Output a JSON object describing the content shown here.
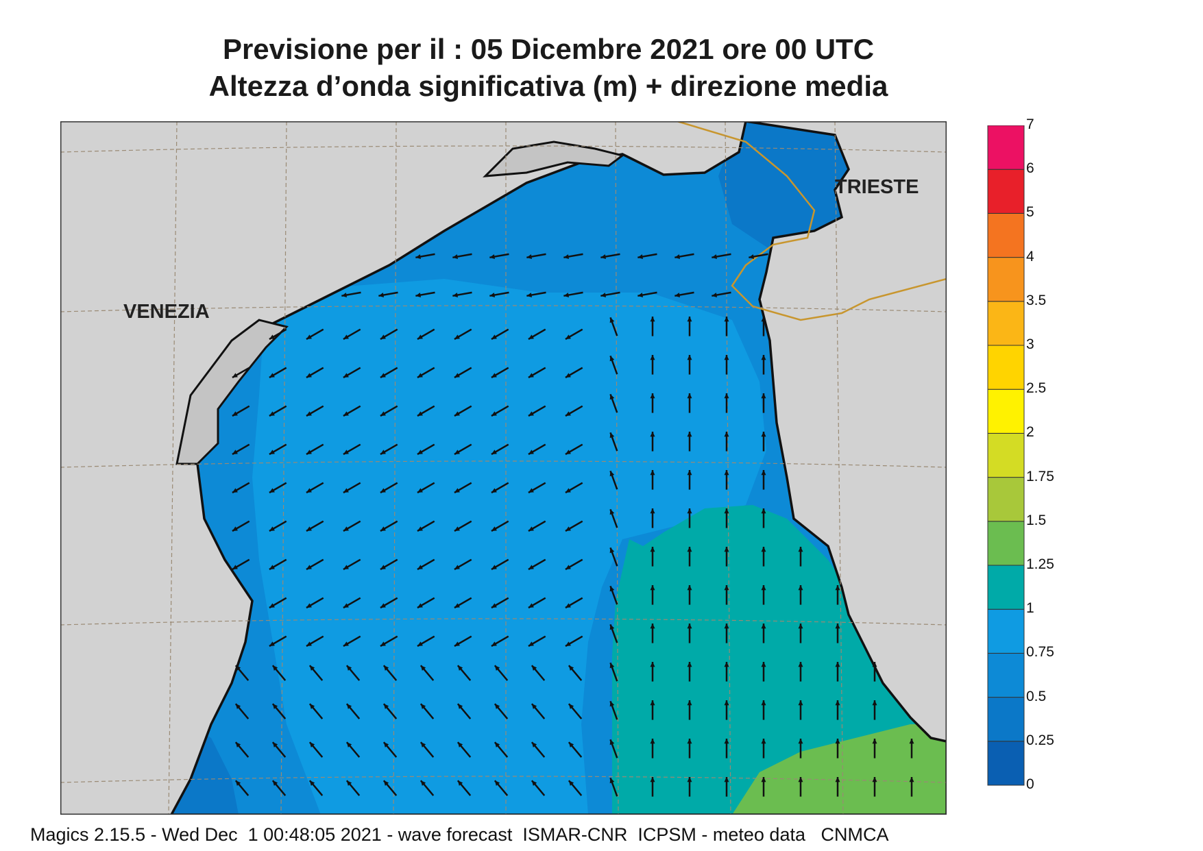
{
  "title": {
    "line1": "Previsione per il  :  05 Dicembre  2021   ore 00 UTC",
    "line2": "Altezza d’onda significativa (m) + direzione media"
  },
  "places": {
    "venezia": "VENEZIA",
    "trieste": "TRIESTE"
  },
  "legend": {
    "levels": [
      "0",
      "0.25",
      "0.5",
      "0.75",
      "1",
      "1.25",
      "1.5",
      "1.75",
      "2",
      "2.5",
      "3",
      "3.5",
      "4",
      "5",
      "6",
      "7"
    ],
    "colors": [
      "#0a5fb2",
      "#0b78c8",
      "#0d8ad6",
      "#0f9be2",
      "#00aaa8",
      "#6bbd50",
      "#a8c83a",
      "#d4dc24",
      "#fff200",
      "#ffd400",
      "#fbb616",
      "#f7941d",
      "#f47420",
      "#e8202a",
      "#ec1163"
    ]
  },
  "footer": "Magics 2.15.5 - Wed Dec  1 00:48:05 2021 - wave forecast  ISMAR-CNR  ICPSM - meteo data   CNMCA",
  "colors": {
    "land": "#d2d2d2",
    "lagoon": "#c4c4c4",
    "coast": "#111111",
    "border": "#c8962e",
    "grid": "#9a8a74",
    "arrow": "#111111"
  }
}
